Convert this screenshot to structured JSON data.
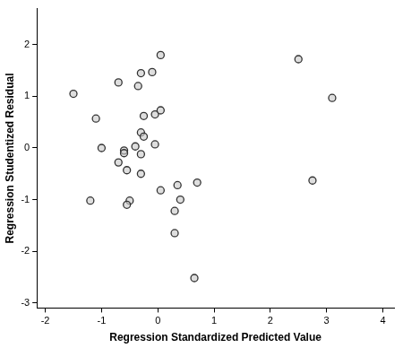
{
  "chart_data": {
    "type": "scatter",
    "x_label": "Regression Standardized Predicted Value",
    "y_label": "Regression Studentized Residual",
    "x": [
      -1.5,
      -1.1,
      -1.0,
      -1.2,
      -0.7,
      -0.7,
      -0.6,
      -0.6,
      -0.55,
      -0.5,
      -0.55,
      -0.35,
      -0.3,
      -0.3,
      -0.25,
      -0.4,
      -0.3,
      -0.3,
      -0.25,
      -0.1,
      0.05,
      -0.05,
      0.05,
      -0.05,
      0.05,
      0.35,
      0.4,
      0.3,
      0.3,
      0.7,
      0.65,
      2.5,
      3.1,
      2.75
    ],
    "values": [
      1.05,
      0.57,
      0.0,
      -1.02,
      1.27,
      -0.28,
      -0.05,
      -0.1,
      -0.43,
      -1.02,
      -1.1,
      1.2,
      1.45,
      0.3,
      0.22,
      0.03,
      -0.12,
      -0.5,
      0.62,
      1.47,
      1.8,
      0.65,
      0.73,
      0.07,
      -0.82,
      -0.72,
      -1.0,
      -1.22,
      -1.65,
      -0.67,
      -2.52,
      1.72,
      0.97,
      -0.63
    ],
    "color": "#333333",
    "marker": "circle",
    "xlim": [
      -2.15,
      4.2
    ],
    "xticks": [
      -2,
      -1,
      0,
      1,
      2,
      3,
      4
    ],
    "ylim": [
      -3.1,
      2.7
    ],
    "yticks": [
      -3,
      -2,
      -1,
      0,
      1,
      2
    ],
    "grid": false
  }
}
